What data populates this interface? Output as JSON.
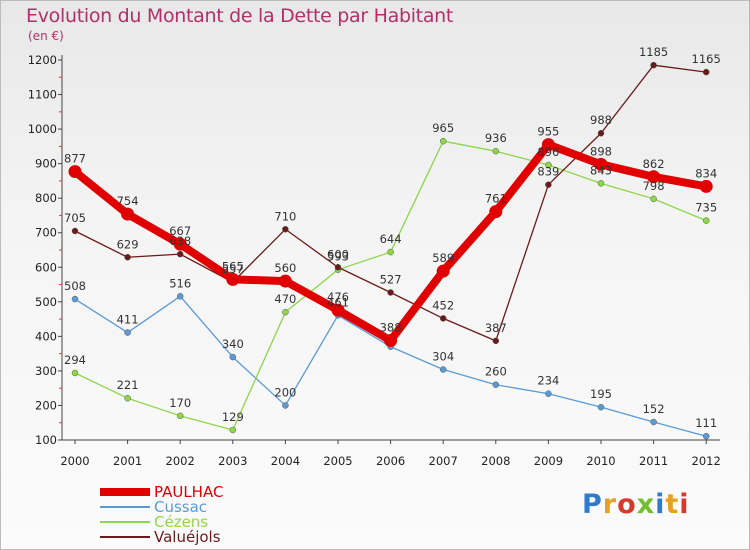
{
  "title": "Evolution du Montant de la Dette par Habitant",
  "unit": "(en €)",
  "logo": {
    "text": "Proxiti",
    "colors": [
      "#2e7bd0",
      "#e8a020",
      "#d63a2a",
      "#6fbf2e",
      "#2e7bd0",
      "#e8a020",
      "#d63a2a"
    ]
  },
  "chart_data": {
    "type": "line",
    "x": [
      "2000",
      "2001",
      "2002",
      "2003",
      "2004",
      "2005",
      "2006",
      "2007",
      "2008",
      "2009",
      "2010",
      "2011",
      "2012"
    ],
    "ylim": [
      100,
      1200
    ],
    "yticks": [
      "100",
      "200",
      "300",
      "400",
      "500",
      "600",
      "700",
      "800",
      "900",
      "1000",
      "1100",
      "1200"
    ],
    "grid": false,
    "legend_position": "bottom-left",
    "series": [
      {
        "name": "PAULHAC",
        "color": "#e00000",
        "values": [
          877,
          754,
          667,
          565,
          560,
          476,
          388,
          589,
          761,
          955,
          898,
          862,
          834
        ]
      },
      {
        "name": "Cussac",
        "color": "#5b9bd5",
        "values": [
          508,
          411,
          516,
          340,
          200,
          461,
          370,
          304,
          260,
          234,
          195,
          152,
          111
        ]
      },
      {
        "name": "Cézens",
        "color": "#8ed64a",
        "values": [
          294,
          221,
          170,
          129,
          470,
          593,
          644,
          965,
          936,
          896,
          843,
          798,
          735
        ]
      },
      {
        "name": "Valuéjols",
        "color": "#6b1a1a",
        "values": [
          705,
          629,
          638,
          557,
          710,
          600,
          527,
          452,
          387,
          839,
          988,
          1185,
          1165
        ]
      }
    ],
    "labels": [
      {
        "series": "PAULHAC",
        "text": [
          "877",
          "754",
          "667",
          "565",
          "560",
          "476",
          "388",
          "589",
          "761",
          "955",
          "898",
          "862",
          "834"
        ]
      },
      {
        "series": "Cussac",
        "text": [
          "508",
          "411",
          "516",
          "340",
          "200",
          "461",
          "",
          "304",
          "260",
          "234",
          "195",
          "152",
          "111"
        ]
      },
      {
        "series": "Cézens",
        "text": [
          "294",
          "221",
          "170",
          "129",
          "470",
          "593",
          "644",
          "965",
          "936",
          "896",
          "843",
          "798",
          "735"
        ]
      },
      {
        "series": "Valuéjols",
        "text": [
          "705",
          "629",
          "638",
          "557",
          "710",
          "600",
          "527",
          "452",
          "387",
          "839",
          "988",
          "1185",
          "1165"
        ]
      }
    ]
  }
}
